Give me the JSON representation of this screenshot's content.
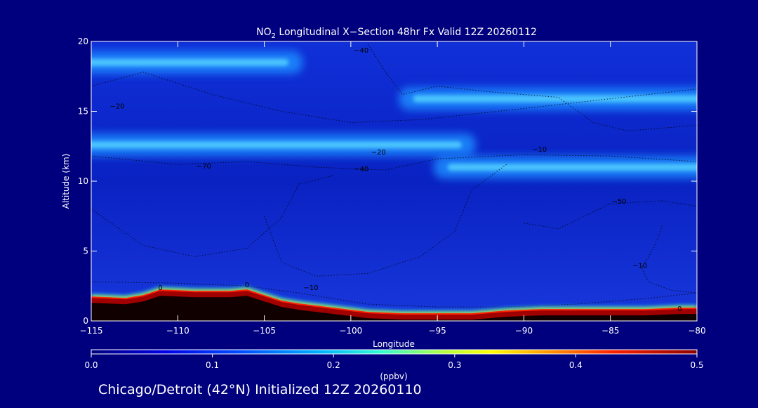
{
  "chart_data": {
    "type": "heatmap",
    "title_prefix": "NO",
    "title_subscript": "2",
    "title_suffix": " Longitudinal X−Section 48hr  Fx Valid 12Z 20260112",
    "xlabel": "Longitude",
    "ylabel": "Altitude (km)",
    "xlim": [
      -115,
      -80
    ],
    "ylim": [
      0,
      20
    ],
    "x_ticks": [
      -115,
      -110,
      -105,
      -100,
      -95,
      -90,
      -85,
      -80
    ],
    "x_tick_labels": [
      "−115",
      "−110",
      "−105",
      "−100",
      "−95",
      "−90",
      "−85",
      "−80"
    ],
    "y_ticks": [
      0,
      5,
      10,
      15,
      20
    ],
    "y_tick_labels": [
      "0",
      "5",
      "10",
      "15",
      "20"
    ],
    "colorbar": {
      "label": "(ppbv)",
      "range": [
        0.0,
        0.5
      ],
      "ticks": [
        0.0,
        0.1,
        0.2,
        0.3,
        0.4,
        0.5
      ],
      "tick_labels": [
        "0.0",
        "0.1",
        "0.2",
        "0.3",
        "0.4",
        "0.5"
      ]
    },
    "high_concentration_bands": [
      {
        "alt_km": 18.5,
        "lon_from": -115,
        "lon_to": -104,
        "ppbv": 0.12
      },
      {
        "alt_km": 15.9,
        "lon_from": -96,
        "lon_to": -80,
        "ppbv": 0.14
      },
      {
        "alt_km": 12.6,
        "lon_from": -115,
        "lon_to": -94,
        "ppbv": 0.12
      },
      {
        "alt_km": 11.0,
        "lon_from": -94,
        "lon_to": -80,
        "ppbv": 0.13
      }
    ],
    "surface_layer": {
      "lon": [
        -115,
        -113,
        -112,
        -111,
        -109,
        -107,
        -106,
        -105,
        -104,
        -103,
        -101,
        -99,
        -97,
        -95,
        -93,
        -91,
        -89,
        -87,
        -85,
        -83,
        -81,
        -80
      ],
      "top_alt_km": [
        1.7,
        1.6,
        1.8,
        2.2,
        2.1,
        2.1,
        2.2,
        1.8,
        1.4,
        1.2,
        0.9,
        0.6,
        0.5,
        0.5,
        0.5,
        0.7,
        0.8,
        0.8,
        0.8,
        0.8,
        0.9,
        0.9
      ],
      "ppbv": 0.5
    },
    "contour_labels": [
      {
        "text": "−20",
        "lon": -113.5,
        "alt_km": 15.2
      },
      {
        "text": "−40",
        "lon": -99.4,
        "alt_km": 19.2
      },
      {
        "text": "−70",
        "lon": -108.5,
        "alt_km": 10.9
      },
      {
        "text": "−20",
        "lon": -98.4,
        "alt_km": 11.9
      },
      {
        "text": "−40",
        "lon": -99.4,
        "alt_km": 10.7
      },
      {
        "text": "−10",
        "lon": -89.1,
        "alt_km": 12.1
      },
      {
        "text": "−50",
        "lon": -84.5,
        "alt_km": 8.4
      },
      {
        "text": "−10",
        "lon": -83.3,
        "alt_km": 3.8
      },
      {
        "text": "−10",
        "lon": -102.3,
        "alt_km": 2.2
      },
      {
        "text": "0",
        "lon": -111.0,
        "alt_km": 2.2
      },
      {
        "text": "0",
        "lon": -106.0,
        "alt_km": 2.4
      },
      {
        "text": "0",
        "lon": -81.0,
        "alt_km": 0.7
      }
    ]
  },
  "footer": {
    "caption": "Chicago/Detroit (42°N) Initialized 12Z 20260110"
  },
  "colors": {
    "background": "#00007f",
    "field_low": "#0a1fc8",
    "band": "#1e8cff",
    "band_core": "#58d8ff",
    "surface": "#a00000"
  }
}
